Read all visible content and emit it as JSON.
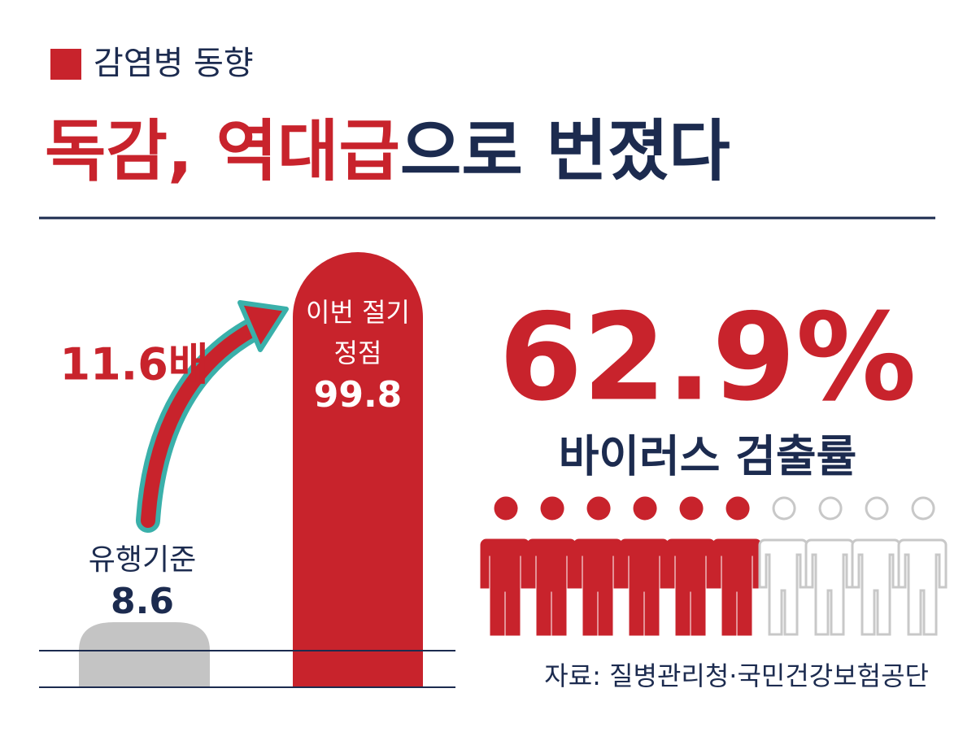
{
  "header": {
    "section": "감염병 동향",
    "title_red": "독감, 역대급",
    "title_navy": "으로 번졌다"
  },
  "comparison": {
    "multiplier": "11.6배",
    "baseline_label": "유행기준",
    "baseline_value": "8.6",
    "peak_label_lines": [
      "이번 절기",
      "정점"
    ],
    "peak_value": "99.8"
  },
  "stat": {
    "value": "62.9%",
    "label": "바이러스 검출률"
  },
  "source": "자료: 질병관리청·국민건강보험공단"
}
